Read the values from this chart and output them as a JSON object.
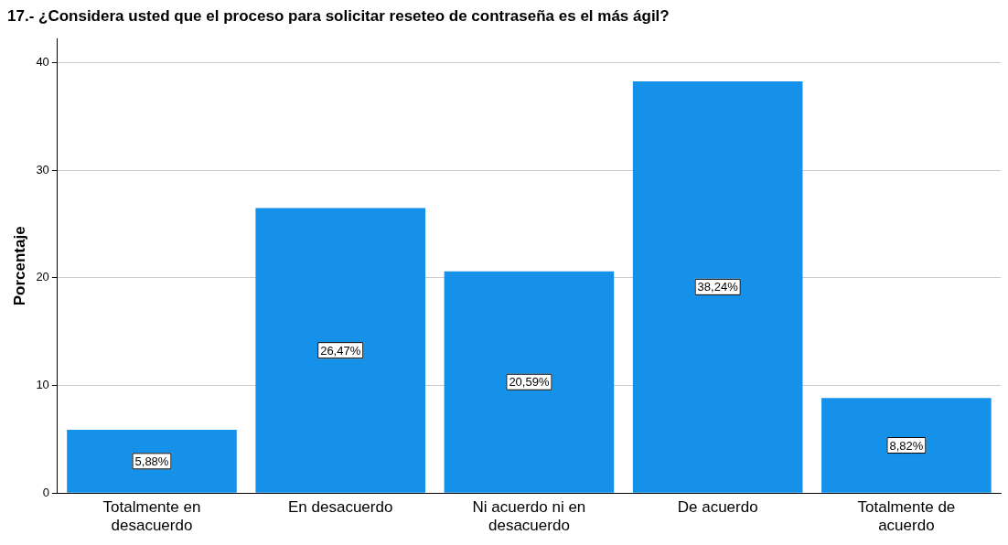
{
  "chart_data": {
    "type": "bar",
    "title": "17.- ¿Considera usted que el proceso para solicitar reseteo de contraseña es el más ágil?",
    "ylabel": "Porcentaje",
    "categories": [
      "Totalmente en desacuerdo",
      "En desacuerdo",
      "Ni acuerdo ni en desacuerdo",
      "De acuerdo",
      "Totalmente de acuerdo"
    ],
    "values": [
      5.88,
      26.47,
      20.59,
      38.24,
      8.82
    ],
    "value_labels": [
      "5,88%",
      "26,47%",
      "20,59%",
      "38,24%",
      "8,82%"
    ],
    "color": "#1591ea",
    "ylim": [
      0,
      42.2
    ],
    "yticks": [
      0,
      10,
      20,
      30,
      40
    ],
    "grid": "y",
    "legend": false
  }
}
